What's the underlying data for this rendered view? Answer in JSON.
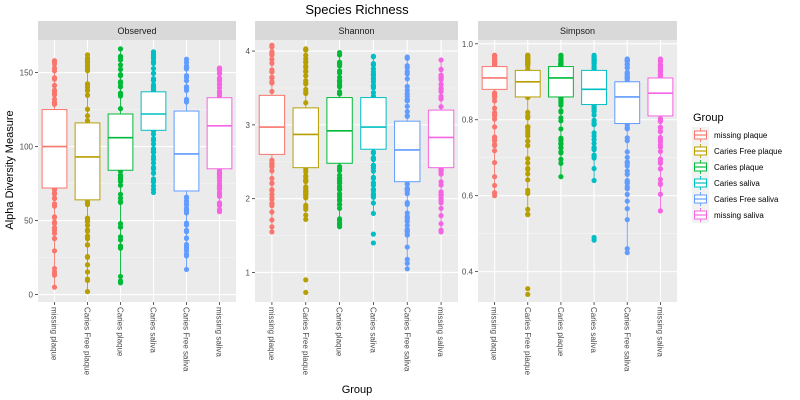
{
  "chart_data": {
    "type": "boxplot",
    "title": "Species Richness",
    "xlabel": "Group",
    "ylabel": "Alpha Diversity Measure",
    "legend": {
      "title": "Group",
      "position": "right",
      "entries": [
        {
          "name": "missing plaque",
          "color": "#F8766D"
        },
        {
          "name": "Caries Free plaque",
          "color": "#B79F00"
        },
        {
          "name": "Caries plaque",
          "color": "#00BA38"
        },
        {
          "name": "Caries saliva",
          "color": "#00BFC4"
        },
        {
          "name": "Caries Free saliva",
          "color": "#619CFF"
        },
        {
          "name": "missing saliva",
          "color": "#F564E3"
        }
      ]
    },
    "categories": [
      "missing plaque",
      "Caries Free plaque",
      "Caries plaque",
      "Caries saliva",
      "Caries Free saliva",
      "missing saliva"
    ],
    "panels": [
      {
        "name": "Observed",
        "ylim": [
          -5,
          172
        ],
        "yticks": [
          0,
          50,
          100,
          150
        ],
        "boxes": [
          {
            "q1": 72,
            "median": 100,
            "q3": 125,
            "whisker_low": 5,
            "whisker_high": 158,
            "outliers": []
          },
          {
            "q1": 64,
            "median": 93,
            "q3": 116,
            "whisker_low": 2,
            "whisker_high": 162,
            "outliers": []
          },
          {
            "q1": 84,
            "median": 106,
            "q3": 122,
            "whisker_low": 8,
            "whisker_high": 166,
            "outliers": []
          },
          {
            "q1": 111,
            "median": 122,
            "q3": 137,
            "whisker_low": 69,
            "whisker_high": 164,
            "outliers": []
          },
          {
            "q1": 70,
            "median": 95,
            "q3": 124,
            "whisker_low": 17,
            "whisker_high": 159,
            "outliers": []
          },
          {
            "q1": 85,
            "median": 114,
            "q3": 133,
            "whisker_low": 56,
            "whisker_high": 153,
            "outliers": []
          }
        ]
      },
      {
        "name": "Shannon",
        "ylim": [
          0.6,
          4.15
        ],
        "yticks": [
          1,
          2,
          3,
          4
        ],
        "boxes": [
          {
            "q1": 2.6,
            "median": 2.97,
            "q3": 3.4,
            "whisker_low": 1.55,
            "whisker_high": 4.08,
            "outliers": []
          },
          {
            "q1": 2.42,
            "median": 2.87,
            "q3": 3.23,
            "whisker_low": 1.72,
            "whisker_high": 4.03,
            "outliers": [
              0.73,
              0.9
            ]
          },
          {
            "q1": 2.48,
            "median": 2.92,
            "q3": 3.37,
            "whisker_low": 1.62,
            "whisker_high": 3.98,
            "outliers": []
          },
          {
            "q1": 2.67,
            "median": 2.97,
            "q3": 3.37,
            "whisker_low": 1.8,
            "whisker_high": 3.93,
            "outliers": [
              1.4,
              1.52
            ]
          },
          {
            "q1": 2.23,
            "median": 2.66,
            "q3": 3.05,
            "whisker_low": 1.05,
            "whisker_high": 3.92,
            "outliers": []
          },
          {
            "q1": 2.42,
            "median": 2.83,
            "q3": 3.2,
            "whisker_low": 1.55,
            "whisker_high": 3.88,
            "outliers": []
          }
        ]
      },
      {
        "name": "Simpson",
        "ylim": [
          0.32,
          1.01
        ],
        "yticks": [
          0.4,
          0.6,
          0.8,
          1.0
        ],
        "ytick_labels": [
          "0.4",
          "0.6",
          "0.8",
          "1.0"
        ],
        "boxes": [
          {
            "q1": 0.88,
            "median": 0.91,
            "q3": 0.94,
            "whisker_low": 0.6,
            "whisker_high": 0.97,
            "outliers": []
          },
          {
            "q1": 0.86,
            "median": 0.9,
            "q3": 0.93,
            "whisker_low": 0.55,
            "whisker_high": 0.97,
            "outliers": [
              0.34,
              0.355
            ]
          },
          {
            "q1": 0.86,
            "median": 0.91,
            "q3": 0.94,
            "whisker_low": 0.65,
            "whisker_high": 0.97,
            "outliers": []
          },
          {
            "q1": 0.84,
            "median": 0.88,
            "q3": 0.93,
            "whisker_low": 0.64,
            "whisker_high": 0.97,
            "outliers": [
              0.483,
              0.49
            ]
          },
          {
            "q1": 0.79,
            "median": 0.86,
            "q3": 0.9,
            "whisker_low": 0.45,
            "whisker_high": 0.96,
            "outliers": []
          },
          {
            "q1": 0.81,
            "median": 0.87,
            "q3": 0.91,
            "whisker_low": 0.56,
            "whisker_high": 0.96,
            "outliers": []
          }
        ]
      }
    ]
  }
}
